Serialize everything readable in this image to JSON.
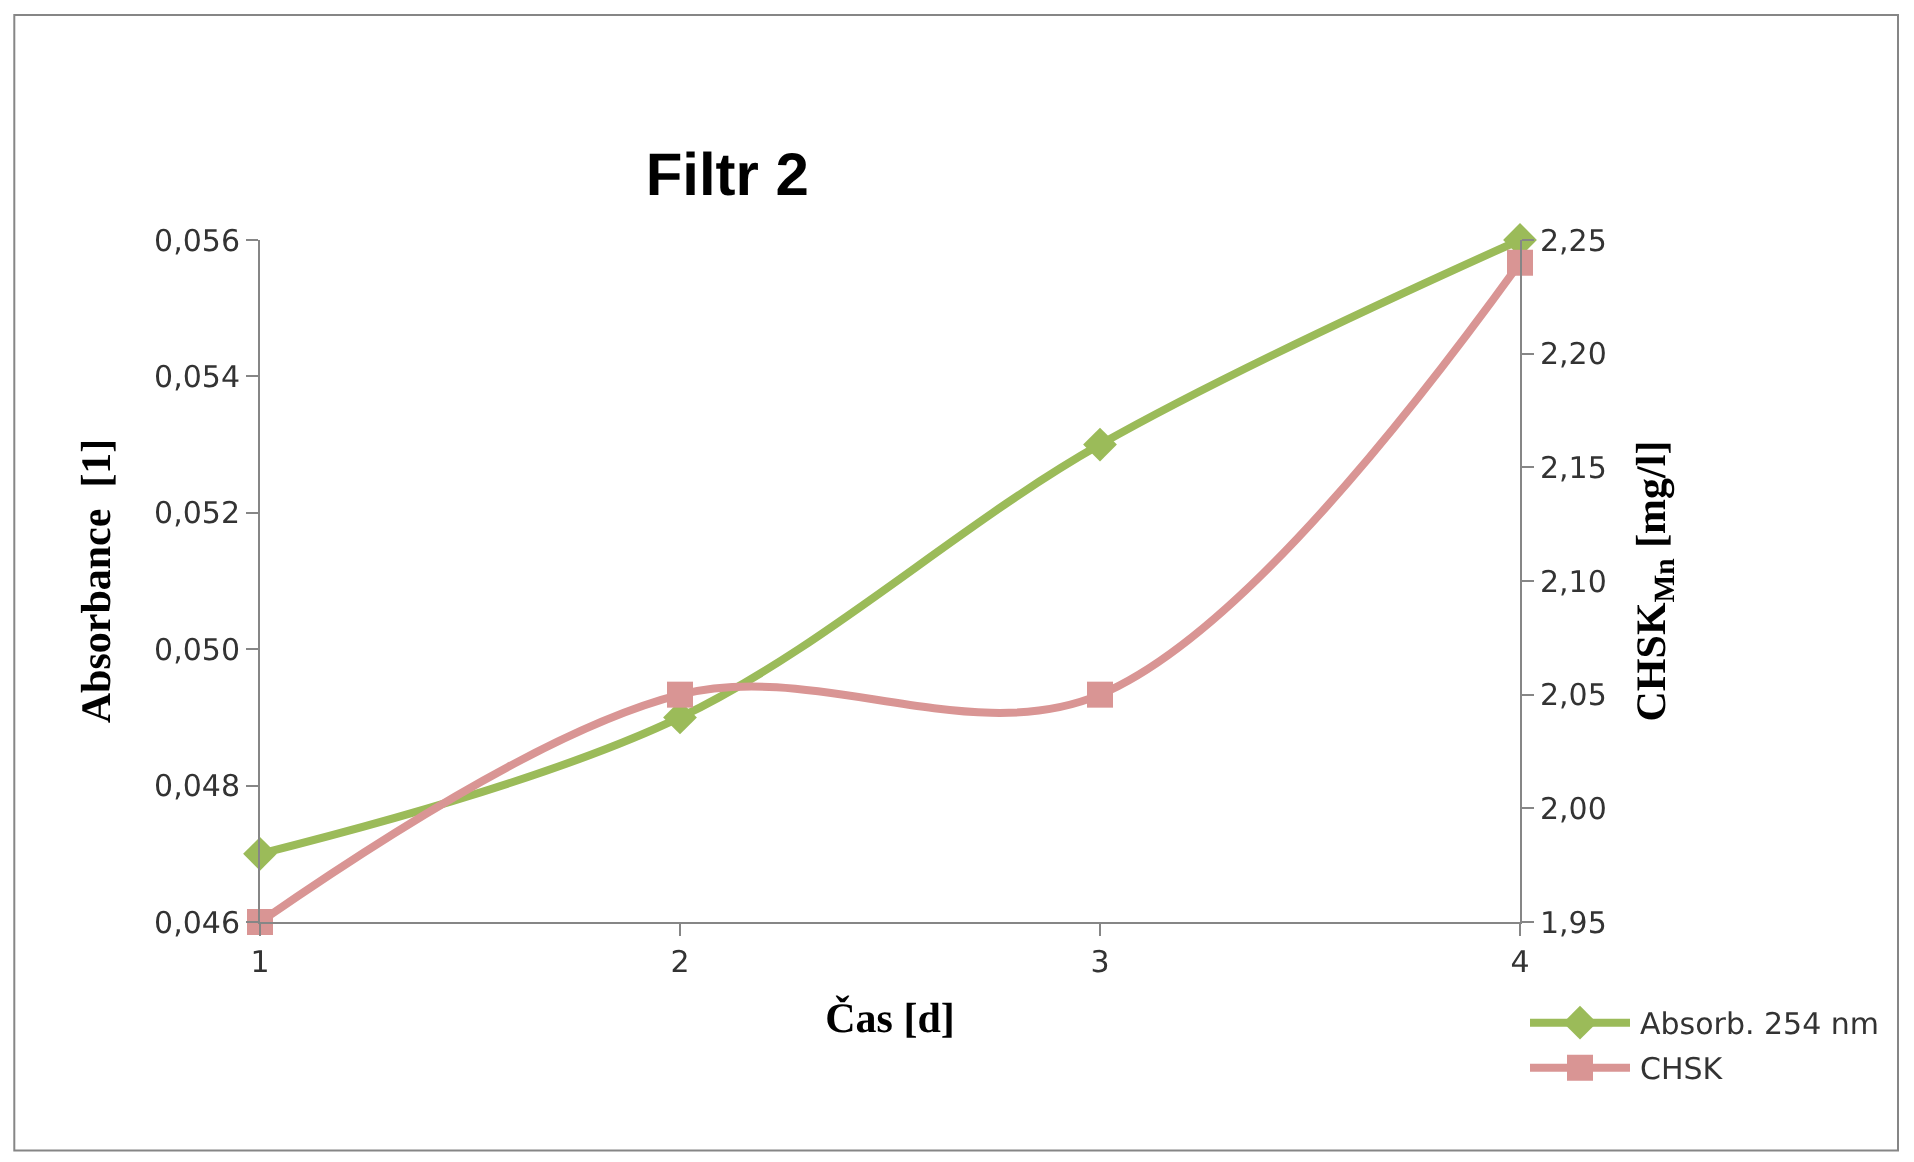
{
  "chart_data": {
    "type": "line",
    "title": "Filtr 2",
    "xlabel": "Čas [d]",
    "ylabel": "Absorbance  [1]",
    "y2label": "CHSK$_{Mn}$ [mg/l]",
    "x": [
      1,
      2,
      3,
      4
    ],
    "series": [
      {
        "name": "Absorb. 254 nm",
        "color": "#9bbb59",
        "values": [
          0.047,
          0.049,
          0.053,
          0.056
        ],
        "marker": "diamond"
      },
      {
        "name": "CHSK",
        "color": "#d99594",
        "values": [
          1.95,
          2.05,
          2.05,
          2.24
        ],
        "marker": "square",
        "axis": "y2"
      }
    ],
    "xlim": [
      1,
      4
    ],
    "xticks": [
      1,
      2,
      3,
      4
    ],
    "ylim": [
      0.046,
      0.056
    ],
    "yticks": [
      {
        "value": 0.046,
        "label": "0,046"
      },
      {
        "value": 0.048,
        "label": "0,048"
      },
      {
        "value": 0.05,
        "label": "0,050"
      },
      {
        "value": 0.052,
        "label": "0,052"
      },
      {
        "value": 0.054,
        "label": "0,054"
      },
      {
        "value": 0.056,
        "label": "0,056"
      }
    ],
    "y2lim": [
      1.95,
      2.25
    ],
    "y2ticks": [
      {
        "value": 1.95,
        "label": "1,95"
      },
      {
        "value": 2.0,
        "label": "2,00"
      },
      {
        "value": 2.05,
        "label": "2,05"
      },
      {
        "value": 2.1,
        "label": "2,10"
      },
      {
        "value": 2.15,
        "label": "2,15"
      },
      {
        "value": 2.2,
        "label": "2,20"
      },
      {
        "value": 2.25,
        "label": "2,25"
      }
    ],
    "legend": "bottom right",
    "line_style": "solid"
  }
}
